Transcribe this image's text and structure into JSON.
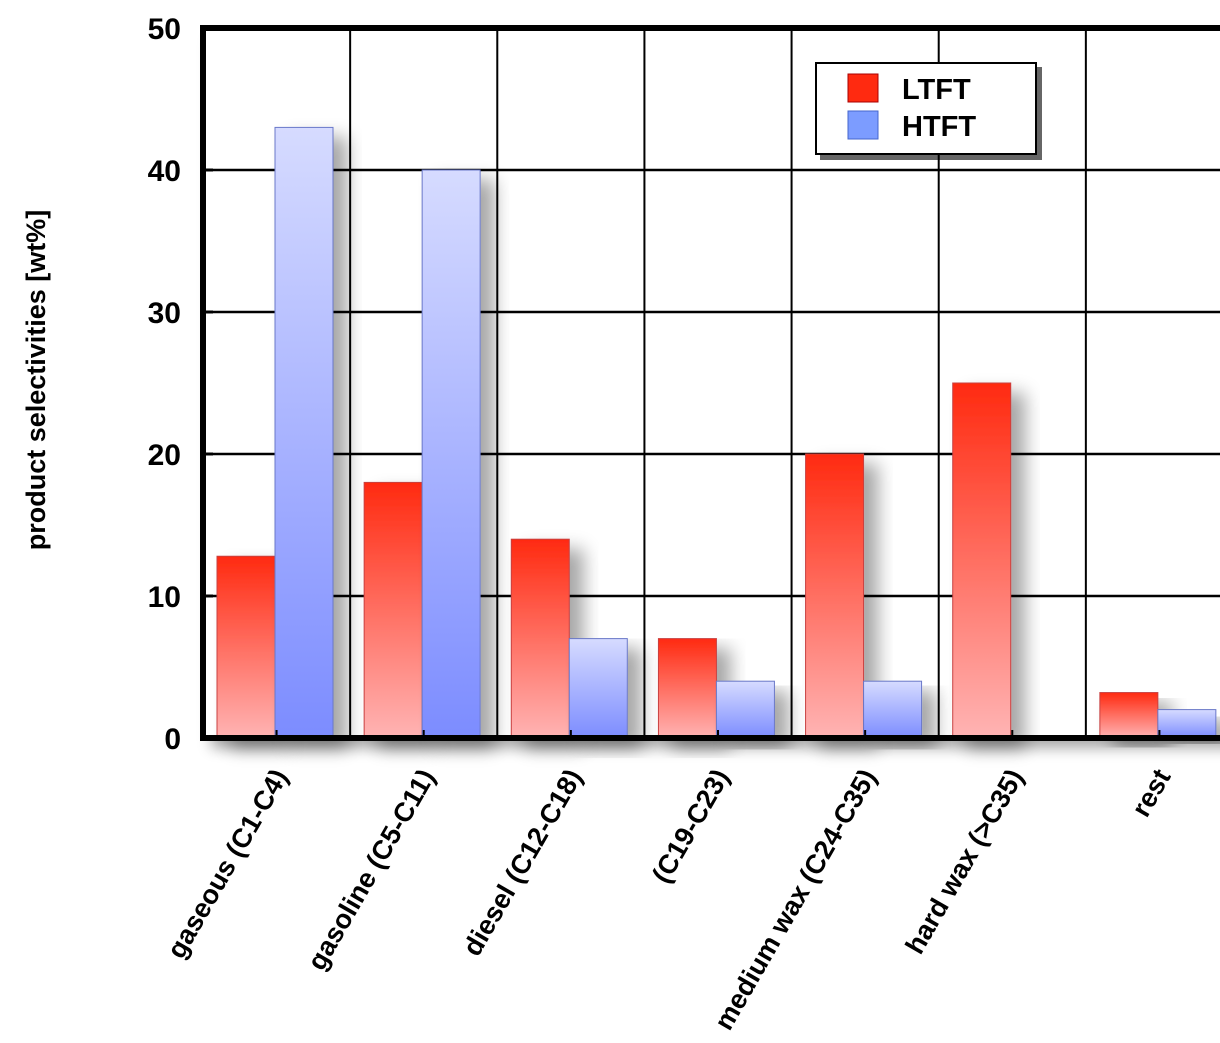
{
  "chart_data": {
    "type": "bar",
    "title": "",
    "xlabel": "",
    "ylabel": "product selectivities [wt%]",
    "ylim": [
      0,
      50
    ],
    "yticks": [
      "0",
      "10",
      "20",
      "30",
      "40",
      "50"
    ],
    "grid": true,
    "legend_position": "top-right",
    "categories": [
      "gaseous (C1-C4)",
      "gasoline (C5-C11)",
      "diesel (C12-C18)",
      "(C19-C23)",
      "medium wax (C24-C35)",
      "hard wax (>C35)",
      "rest"
    ],
    "series": [
      {
        "name": "LTFT",
        "color": "#ff2a10",
        "values": [
          12.8,
          18,
          14,
          7,
          20,
          25,
          3.2
        ]
      },
      {
        "name": "HTFT",
        "color": "#7c8cff",
        "values": [
          43,
          40,
          7,
          4,
          4,
          0,
          2
        ]
      }
    ]
  }
}
